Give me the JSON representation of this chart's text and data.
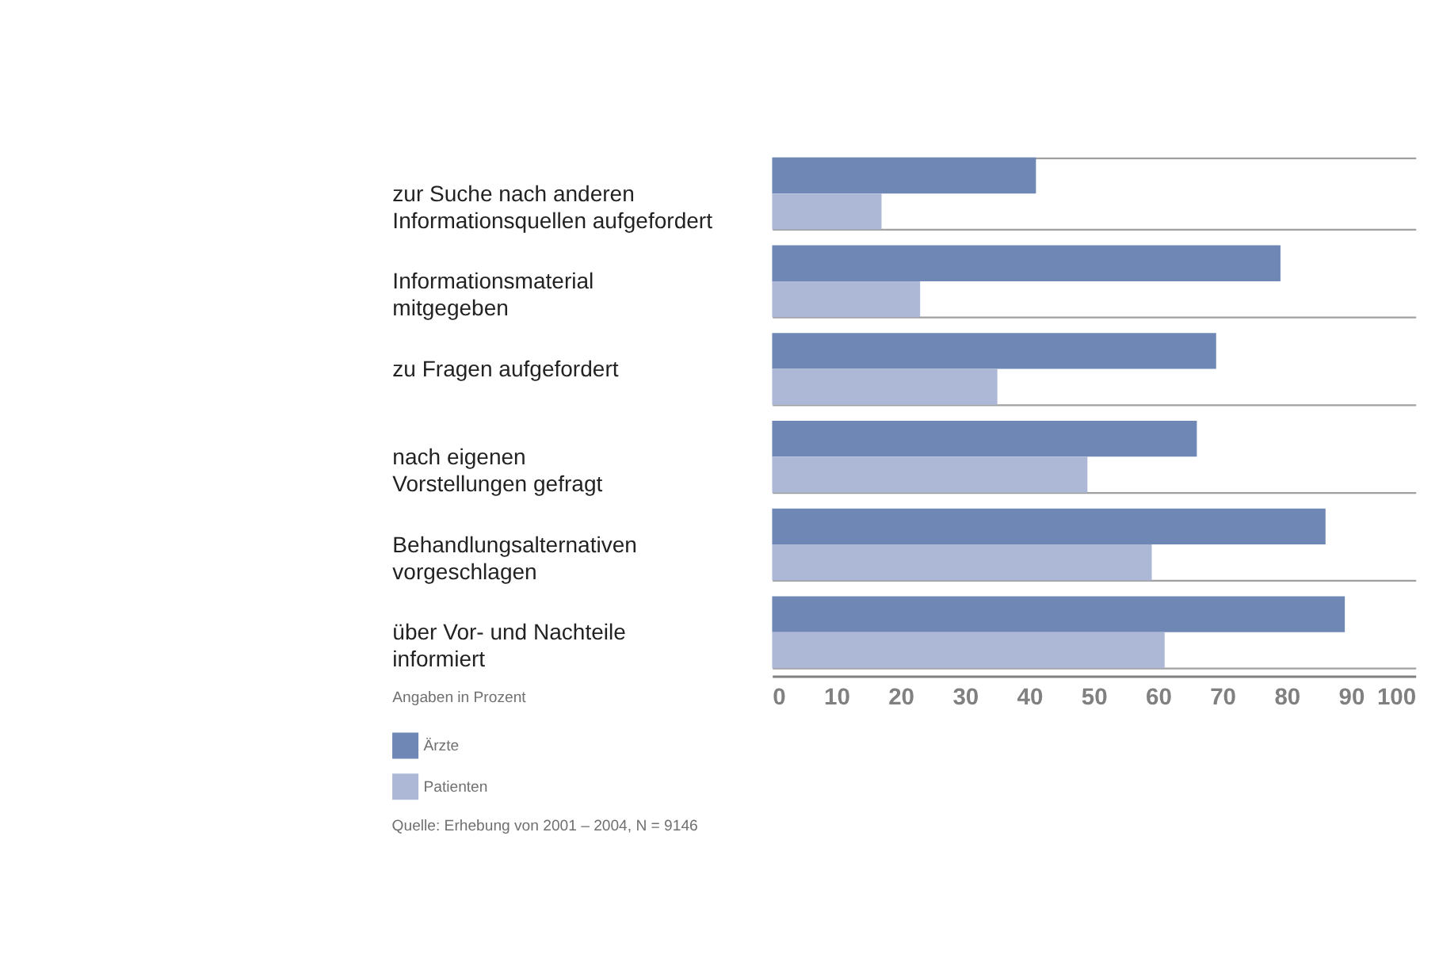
{
  "chart_data": {
    "type": "bar",
    "orientation": "horizontal",
    "xlabel": "Angaben in Prozent",
    "categories": [
      "zur Suche nach anderen\nInformationsquellen aufgefordert",
      "Informationsmaterial\nmitgegeben",
      "zu Fragen aufgefordert",
      "nach eigenen\nVorstellungen gefragt",
      "Behandlungsalternativen\nvorgeschlagen",
      "über Vor- und Nachteile\ninformiert"
    ],
    "series": [
      {
        "name": "Ärzte",
        "color": "#6e87b4",
        "values": [
          41,
          79,
          69,
          66,
          86,
          89
        ]
      },
      {
        "name": "Patienten",
        "color": "#adb8d7",
        "values": [
          17,
          23,
          35,
          49,
          59,
          61
        ]
      }
    ],
    "xlim": [
      0,
      100
    ],
    "xticks": [
      0,
      10,
      20,
      30,
      40,
      50,
      60,
      70,
      80,
      90,
      100
    ],
    "grid": "y",
    "legend": "bottom left",
    "annotations": [
      "Quelle: Erhebung von 2001 – 2004, N = 9146"
    ]
  }
}
